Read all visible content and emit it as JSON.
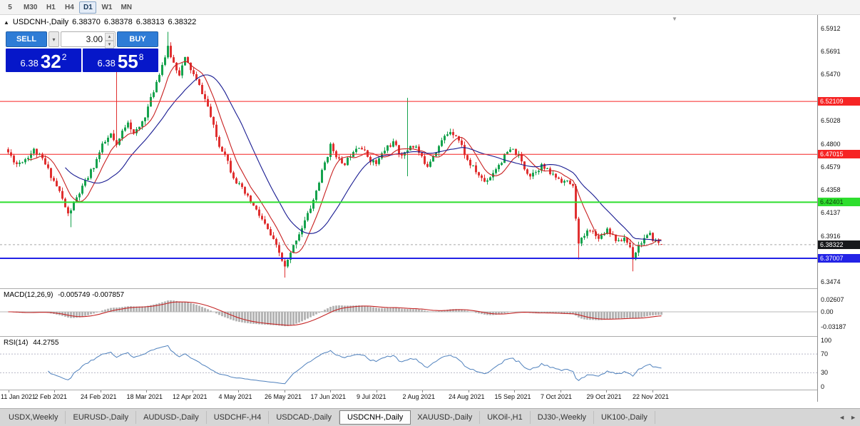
{
  "toolbar": {
    "timeframes": [
      {
        "label": "5",
        "active": false
      },
      {
        "label": "M30",
        "active": false
      },
      {
        "label": "H1",
        "active": false
      },
      {
        "label": "H4",
        "active": false
      },
      {
        "label": "D1",
        "active": true
      },
      {
        "label": "W1",
        "active": false
      },
      {
        "label": "MN",
        "active": false
      }
    ]
  },
  "chart_header": {
    "symbol": "USDCNH-,Daily",
    "open": "6.38370",
    "high": "6.38378",
    "low": "6.38313",
    "close": "6.38322"
  },
  "trade_panel": {
    "sell_label": "SELL",
    "buy_label": "BUY",
    "volume": "3.00",
    "sell_price": {
      "head": "6.38",
      "big": "32",
      "sup": "2"
    },
    "buy_price": {
      "head": "6.38",
      "big": "55",
      "sup": "8"
    }
  },
  "levels": [
    {
      "label": "6.52109",
      "price": 6.52109,
      "color": "#f62424",
      "text_color": "#ffffff",
      "thickness": 1
    },
    {
      "label": "6.47015",
      "price": 6.47015,
      "color": "#f62424",
      "text_color": "#ffffff",
      "thickness": 1
    },
    {
      "label": "6.42401",
      "price": 6.42401,
      "color": "#2ede2e",
      "text_color": "#0a3d0a",
      "thickness": 2
    },
    {
      "label": "6.37007",
      "price": 6.37007,
      "color": "#2323e6",
      "text_color": "#ffffff",
      "thickness": 2
    }
  ],
  "current_price": {
    "label": "6.38322",
    "price": 6.38322,
    "bg": "#17191c",
    "text_color": "#ffffff"
  },
  "price_axis": {
    "labels": [
      {
        "text": "6.5912",
        "price": 6.5912
      },
      {
        "text": "6.5691",
        "price": 6.5691
      },
      {
        "text": "6.5470",
        "price": 6.547
      },
      {
        "text": "6.5028",
        "price": 6.5028
      },
      {
        "text": "6.4800",
        "price": 6.48
      },
      {
        "text": "6.4579",
        "price": 6.4579
      },
      {
        "text": "6.4358",
        "price": 6.4358
      },
      {
        "text": "6.4137",
        "price": 6.4137
      },
      {
        "text": "6.3916",
        "price": 6.3916
      },
      {
        "text": "6.3474",
        "price": 6.3474
      }
    ]
  },
  "macd_panel": {
    "name": "MACD(12,26,9)",
    "values": "-0.005749 -0.007857",
    "axis": [
      {
        "text": "0.02607",
        "value": 0.02607
      },
      {
        "text": "0.00",
        "value": 0
      },
      {
        "text": "-0.03187",
        "value": -0.03187
      }
    ]
  },
  "rsi_panel": {
    "name": "RSI(14)",
    "value": "44.2755",
    "axis": [
      {
        "text": "100",
        "value": 100
      },
      {
        "text": "70",
        "value": 70
      },
      {
        "text": "30",
        "value": 30
      },
      {
        "text": "0",
        "value": 0
      }
    ],
    "dashed_levels": [
      70,
      30
    ]
  },
  "date_axis": {
    "labels": [
      "11 Jan 2021",
      "2 Feb 2021",
      "24 Feb 2021",
      "18 Mar 2021",
      "12 Apr 2021",
      "4 May 2021",
      "26 May 2021",
      "17 Jun 2021",
      "9 Jul 2021",
      "2 Aug 2021",
      "24 Aug 2021",
      "15 Sep 2021",
      "7 Oct 2021",
      "29 Oct 2021",
      "22 Nov 2021"
    ]
  },
  "tabs": {
    "items": [
      "USDX,Weekly",
      "EURUSD-,Daily",
      "AUDUSD-,Daily",
      "USDCHF-,H4",
      "USDCAD-,Daily",
      "USDCNH-,Daily",
      "XAUUSD-,Daily",
      "UKOil-,H1",
      "DJ30-,Weekly",
      "UK100-,Daily"
    ],
    "active_index": 5
  },
  "icons": {
    "chart_marker": "▲",
    "shift_marker": "▼",
    "dropdown_arrow": "▾",
    "spin_up": "▴",
    "spin_down": "▾",
    "scroll_left": "◄",
    "scroll_right": "►"
  },
  "chart_data": {
    "type": "candlestick",
    "symbol": "USDCNH-",
    "timeframe": "Daily",
    "candle_count": 230,
    "seed": 11,
    "indicators": {
      "ma_fast_period": 8,
      "ma_slow_period": 21,
      "macd": [
        12,
        26,
        9
      ],
      "rsi_period": 14
    },
    "colors": {
      "up": "#15a24d",
      "down": "#e03030",
      "ma_fast": "#c81f1f",
      "ma_slow": "#171a91",
      "macd_hist": "#b5b5b5",
      "macd_signal": "#c42525",
      "rsi_line": "#4f81bd",
      "zero_line": "#b8b8b8",
      "level_dash": "#b8b8c8",
      "current_dash": "#a8a8a8"
    },
    "price_anchors": [
      [
        0,
        6.472
      ],
      [
        3,
        6.461
      ],
      [
        6,
        6.466
      ],
      [
        9,
        6.474
      ],
      [
        12,
        6.465
      ],
      [
        15,
        6.45
      ],
      [
        18,
        6.434
      ],
      [
        21,
        6.412
      ],
      [
        24,
        6.428
      ],
      [
        27,
        6.443
      ],
      [
        30,
        6.459
      ],
      [
        33,
        6.478
      ],
      [
        36,
        6.489
      ],
      [
        38,
        6.477
      ],
      [
        40,
        6.492
      ],
      [
        42,
        6.503
      ],
      [
        44,
        6.489
      ],
      [
        46,
        6.496
      ],
      [
        48,
        6.508
      ],
      [
        50,
        6.523
      ],
      [
        53,
        6.549
      ],
      [
        56,
        6.572
      ],
      [
        58,
        6.558
      ],
      [
        60,
        6.548
      ],
      [
        62,
        6.562
      ],
      [
        64,
        6.552
      ],
      [
        66,
        6.541
      ],
      [
        68,
        6.53
      ],
      [
        70,
        6.516
      ],
      [
        72,
        6.496
      ],
      [
        74,
        6.478
      ],
      [
        76,
        6.472
      ],
      [
        78,
        6.455
      ],
      [
        80,
        6.444
      ],
      [
        83,
        6.432
      ],
      [
        86,
        6.42
      ],
      [
        89,
        6.407
      ],
      [
        92,
        6.392
      ],
      [
        95,
        6.375
      ],
      [
        97,
        6.361
      ],
      [
        99,
        6.374
      ],
      [
        101,
        6.389
      ],
      [
        103,
        6.4
      ],
      [
        105,
        6.412
      ],
      [
        107,
        6.426
      ],
      [
        109,
        6.444
      ],
      [
        111,
        6.462
      ],
      [
        113,
        6.478
      ],
      [
        115,
        6.47
      ],
      [
        117,
        6.459
      ],
      [
        119,
        6.465
      ],
      [
        121,
        6.475
      ],
      [
        123,
        6.479
      ],
      [
        125,
        6.472
      ],
      [
        127,
        6.465
      ],
      [
        129,
        6.461
      ],
      [
        131,
        6.47
      ],
      [
        133,
        6.478
      ],
      [
        135,
        6.481
      ],
      [
        137,
        6.472
      ],
      [
        139,
        6.47
      ],
      [
        141,
        6.479
      ],
      [
        143,
        6.477
      ],
      [
        145,
        6.466
      ],
      [
        147,
        6.46
      ],
      [
        149,
        6.47
      ],
      [
        151,
        6.478
      ],
      [
        153,
        6.487
      ],
      [
        155,
        6.493
      ],
      [
        157,
        6.489
      ],
      [
        159,
        6.478
      ],
      [
        161,
        6.464
      ],
      [
        163,
        6.457
      ],
      [
        165,
        6.45
      ],
      [
        167,
        6.444
      ],
      [
        169,
        6.449
      ],
      [
        171,
        6.457
      ],
      [
        173,
        6.464
      ],
      [
        175,
        6.472
      ],
      [
        177,
        6.474
      ],
      [
        179,
        6.468
      ],
      [
        181,
        6.457
      ],
      [
        183,
        6.45
      ],
      [
        185,
        6.455
      ],
      [
        187,
        6.459
      ],
      [
        189,
        6.454
      ],
      [
        191,
        6.45
      ],
      [
        193,
        6.447
      ],
      [
        195,
        6.444
      ],
      [
        197,
        6.442
      ],
      [
        198,
        6.438
      ],
      [
        200,
        6.383
      ],
      [
        202,
        6.392
      ],
      [
        204,
        6.399
      ],
      [
        206,
        6.391
      ],
      [
        208,
        6.392
      ],
      [
        210,
        6.399
      ],
      [
        212,
        6.392
      ],
      [
        214,
        6.385
      ],
      [
        216,
        6.39
      ],
      [
        218,
        6.381
      ],
      [
        219,
        6.371
      ],
      [
        221,
        6.383
      ],
      [
        223,
        6.389
      ],
      [
        225,
        6.392
      ],
      [
        227,
        6.386
      ],
      [
        229,
        6.3832
      ]
    ],
    "spikes": [
      {
        "i": 22,
        "low": 6.4
      },
      {
        "i": 38,
        "high": 6.553
      },
      {
        "i": 56,
        "high": 6.588
      },
      {
        "i": 57,
        "high": 6.578
      },
      {
        "i": 97,
        "low": 6.3515
      },
      {
        "i": 140,
        "high": 6.5245,
        "low": 6.449
      },
      {
        "i": 200,
        "low": 6.369
      },
      {
        "i": 219,
        "low": 6.3575
      }
    ],
    "last_candle": {
      "open": 6.3837,
      "high": 6.38378,
      "low": 6.38313,
      "close": 6.38322
    }
  }
}
